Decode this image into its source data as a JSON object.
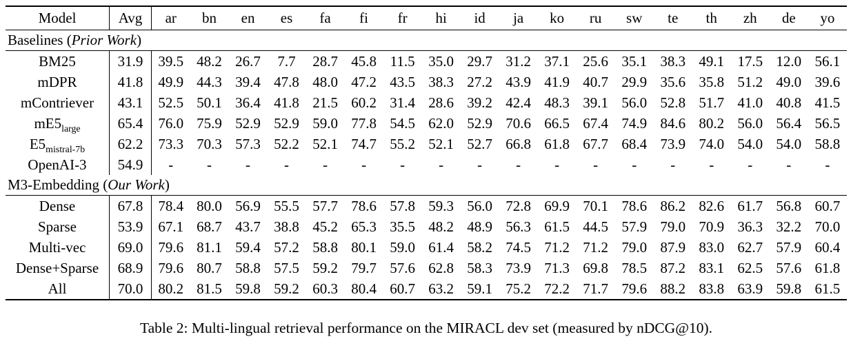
{
  "caption": "Table 2: Multi-lingual retrieval performance on the MIRACL dev set (measured by nDCG@10).",
  "table": {
    "columns": [
      "Model",
      "Avg",
      "ar",
      "bn",
      "en",
      "es",
      "fa",
      "fi",
      "fr",
      "hi",
      "id",
      "ja",
      "ko",
      "ru",
      "sw",
      "te",
      "th",
      "zh",
      "de",
      "yo"
    ],
    "sections": [
      {
        "label_prefix": "Baselines (",
        "label_italic": "Prior Work",
        "label_suffix": ")",
        "rows": [
          {
            "model": "BM25",
            "sub": "",
            "values": [
              "31.9",
              "39.5",
              "48.2",
              "26.7",
              "7.7",
              "28.7",
              "45.8",
              "11.5",
              "35.0",
              "29.7",
              "31.2",
              "37.1",
              "25.6",
              "35.1",
              "38.3",
              "49.1",
              "17.5",
              "12.0",
              "56.1"
            ],
            "bold": []
          },
          {
            "model": "mDPR",
            "sub": "",
            "values": [
              "41.8",
              "49.9",
              "44.3",
              "39.4",
              "47.8",
              "48.0",
              "47.2",
              "43.5",
              "38.3",
              "27.2",
              "43.9",
              "41.9",
              "40.7",
              "29.9",
              "35.6",
              "35.8",
              "51.2",
              "49.0",
              "39.6"
            ],
            "bold": []
          },
          {
            "model": "mContriever",
            "sub": "",
            "values": [
              "43.1",
              "52.5",
              "50.1",
              "36.4",
              "41.8",
              "21.5",
              "60.2",
              "31.4",
              "28.6",
              "39.2",
              "42.4",
              "48.3",
              "39.1",
              "56.0",
              "52.8",
              "51.7",
              "41.0",
              "40.8",
              "41.5"
            ],
            "bold": []
          },
          {
            "model": "mE5",
            "sub": "large",
            "values": [
              "65.4",
              "76.0",
              "75.9",
              "52.9",
              "52.9",
              "59.0",
              "77.8",
              "54.5",
              "62.0",
              "52.9",
              "70.6",
              "66.5",
              "67.4",
              "74.9",
              "84.6",
              "80.2",
              "56.0",
              "56.4",
              "56.5"
            ],
            "bold": []
          },
          {
            "model": "E5",
            "sub": "mistral-7b",
            "values": [
              "62.2",
              "73.3",
              "70.3",
              "57.3",
              "52.2",
              "52.1",
              "74.7",
              "55.2",
              "52.1",
              "52.7",
              "66.8",
              "61.8",
              "67.7",
              "68.4",
              "73.9",
              "74.0",
              "54.0",
              "54.0",
              "58.8"
            ],
            "bold": []
          },
          {
            "model": "OpenAI-3",
            "sub": "",
            "values": [
              "54.9",
              "-",
              "-",
              "-",
              "-",
              "-",
              "-",
              "-",
              "-",
              "-",
              "-",
              "-",
              "-",
              "-",
              "-",
              "-",
              "-",
              "-",
              "-"
            ],
            "bold": []
          }
        ]
      },
      {
        "label_prefix": "M3-Embedding (",
        "label_italic": "Our Work",
        "label_suffix": ")",
        "rows": [
          {
            "model": "Dense",
            "sub": "",
            "values": [
              "67.8",
              "78.4",
              "80.0",
              "56.9",
              "55.5",
              "57.7",
              "78.6",
              "57.8",
              "59.3",
              "56.0",
              "72.8",
              "69.9",
              "70.1",
              "78.6",
              "86.2",
              "82.6",
              "61.7",
              "56.8",
              "60.7"
            ],
            "bold": []
          },
          {
            "model": "Sparse",
            "sub": "",
            "values": [
              "53.9",
              "67.1",
              "68.7",
              "43.7",
              "38.8",
              "45.2",
              "65.3",
              "35.5",
              "48.2",
              "48.9",
              "56.3",
              "61.5",
              "44.5",
              "57.9",
              "79.0",
              "70.9",
              "36.3",
              "32.2",
              "70.0"
            ],
            "bold": []
          },
          {
            "model": "Multi-vec",
            "sub": "",
            "values": [
              "69.0",
              "79.6",
              "81.1",
              "59.4",
              "57.2",
              "58.8",
              "80.1",
              "59.0",
              "61.4",
              "58.2",
              "74.5",
              "71.2",
              "71.2",
              "79.0",
              "87.9",
              "83.0",
              "62.7",
              "57.9",
              "60.4"
            ],
            "bold": []
          },
          {
            "model": "Dense+Sparse",
            "sub": "",
            "values": [
              "68.9",
              "79.6",
              "80.7",
              "58.8",
              "57.5",
              "59.2",
              "79.7",
              "57.6",
              "62.8",
              "58.3",
              "73.9",
              "71.3",
              "69.8",
              "78.5",
              "87.2",
              "83.1",
              "62.5",
              "57.6",
              "61.8"
            ],
            "bold": [
              18
            ]
          },
          {
            "model": "All",
            "sub": "",
            "values": [
              "70.0",
              "80.2",
              "81.5",
              "59.8",
              "59.2",
              "60.3",
              "80.4",
              "60.7",
              "63.2",
              "59.1",
              "75.2",
              "72.2",
              "71.7",
              "79.6",
              "88.2",
              "83.8",
              "63.9",
              "59.8",
              "61.5"
            ],
            "bold": [
              0,
              1,
              2,
              3,
              4,
              5,
              6,
              7,
              8,
              9,
              10,
              11,
              12,
              13,
              14,
              15,
              16,
              17
            ]
          }
        ]
      }
    ]
  }
}
